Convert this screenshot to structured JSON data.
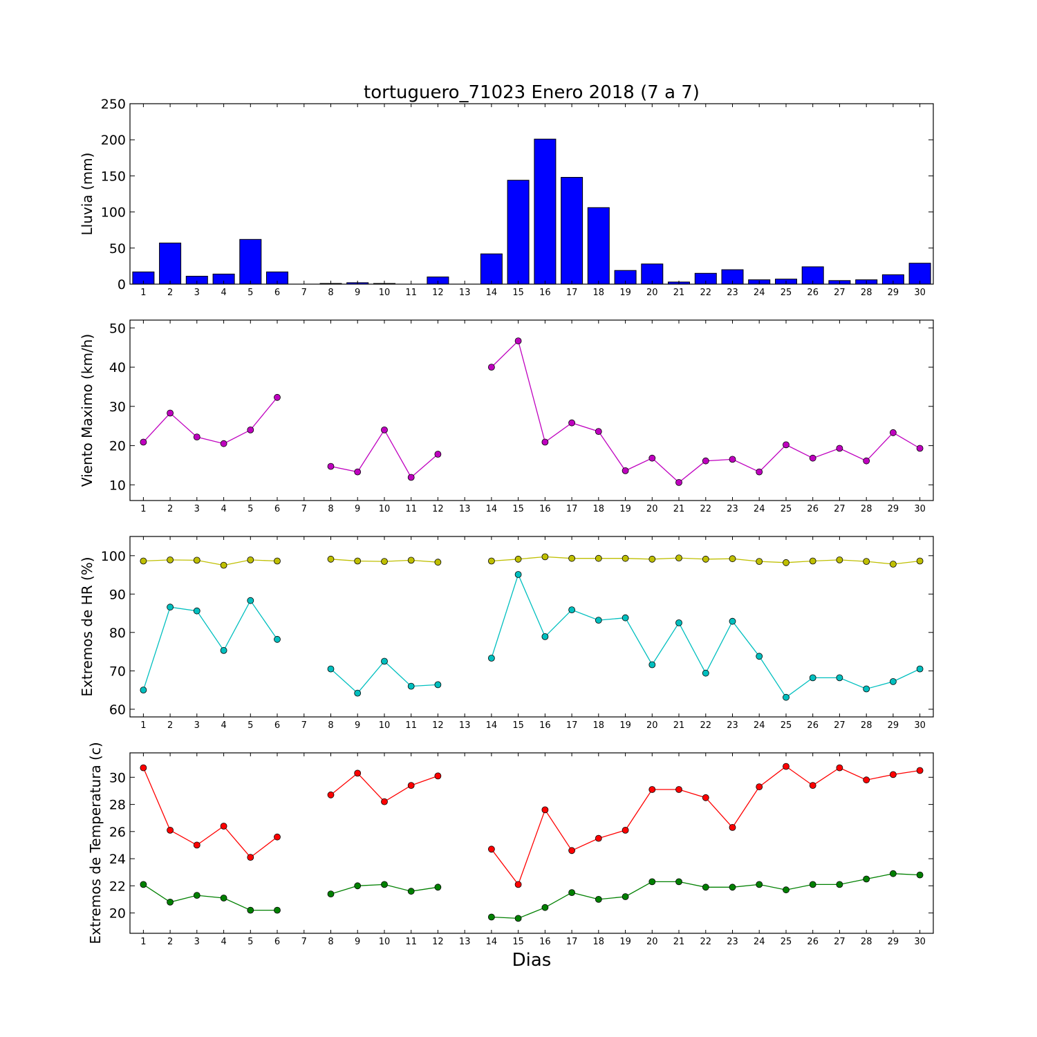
{
  "chart_data": {
    "type": "combo",
    "title": "tortuguero_71023 Enero 2018  (7 a 7)",
    "xlabel": "Dias",
    "days": [
      "1",
      "2",
      "3",
      "4",
      "5",
      "6",
      "7",
      "8",
      "9",
      "10",
      "11",
      "12",
      "13",
      "14",
      "15",
      "16",
      "17",
      "18",
      "19",
      "20",
      "21",
      "22",
      "23",
      "24",
      "25",
      "26",
      "27",
      "28",
      "29",
      "30"
    ],
    "panels": [
      {
        "id": "lluvia",
        "type": "bar",
        "ylabel": "Lluvia (mm)",
        "ylim": [
          0,
          250
        ],
        "yticks": [
          "0",
          "50",
          "100",
          "150",
          "200",
          "250"
        ],
        "series": [
          {
            "color": "#0000ff",
            "values": [
              17,
              57,
              11,
              14,
              62,
              17,
              0,
              1,
              2,
              1,
              0,
              10,
              0,
              42,
              144,
              201,
              148,
              106,
              19,
              28,
              3,
              15,
              20,
              6,
              7,
              24,
              5,
              6,
              13,
              29
            ]
          }
        ]
      },
      {
        "id": "viento",
        "type": "line",
        "ylabel": "Viento Maximo (km/h)",
        "ylim": [
          6,
          52
        ],
        "yticks": [
          "10",
          "20",
          "30",
          "40",
          "50"
        ],
        "series": [
          {
            "color": "#bf00bf",
            "values": [
              20.9,
              28.3,
              22.2,
              20.5,
              24.0,
              32.3,
              null,
              14.7,
              13.3,
              24.0,
              11.9,
              17.8,
              null,
              40.0,
              46.7,
              20.9,
              25.8,
              23.6,
              13.6,
              16.8,
              10.6,
              16.1,
              16.5,
              13.3,
              20.2,
              16.8,
              19.3,
              16.1,
              23.3,
              19.3
            ]
          }
        ]
      },
      {
        "id": "hr",
        "type": "line",
        "ylabel": "Extremos de HR (%)",
        "ylim": [
          58,
          105
        ],
        "yticks": [
          "60",
          "70",
          "80",
          "90",
          "100"
        ],
        "series": [
          {
            "color": "#bfbf00",
            "values": [
              98.6,
              98.9,
              98.8,
              97.5,
              98.9,
              98.6,
              null,
              99.1,
              98.6,
              98.5,
              98.8,
              98.3,
              null,
              98.6,
              99.1,
              99.7,
              99.3,
              99.3,
              99.3,
              99.1,
              99.4,
              99.1,
              99.2,
              98.5,
              98.2,
              98.6,
              98.9,
              98.5,
              97.8,
              98.6
            ]
          },
          {
            "color": "#00bfbf",
            "values": [
              65.0,
              86.6,
              85.6,
              75.3,
              88.3,
              78.2,
              null,
              70.5,
              64.2,
              72.5,
              66.0,
              66.4,
              null,
              73.3,
              95.1,
              78.9,
              85.9,
              83.2,
              83.8,
              71.6,
              82.5,
              69.4,
              82.9,
              73.8,
              63.1,
              68.2,
              68.2,
              65.3,
              67.2,
              70.5
            ]
          }
        ]
      },
      {
        "id": "temperatura",
        "type": "line",
        "ylabel": "Extremos de Temperatura (c)",
        "ylim": [
          18.5,
          31.8
        ],
        "yticks": [
          "20",
          "22",
          "24",
          "26",
          "28",
          "30"
        ],
        "series": [
          {
            "color": "#ff0000",
            "values": [
              30.7,
              26.1,
              25.0,
              26.4,
              24.1,
              25.6,
              null,
              28.7,
              30.3,
              28.2,
              29.4,
              30.1,
              null,
              24.7,
              22.1,
              27.6,
              24.6,
              25.5,
              26.1,
              29.1,
              29.1,
              28.5,
              26.3,
              29.3,
              30.8,
              29.4,
              30.7,
              29.8,
              30.2,
              30.5
            ]
          },
          {
            "color": "#008000",
            "values": [
              22.1,
              20.8,
              21.3,
              21.1,
              20.2,
              20.2,
              null,
              21.4,
              22.0,
              22.1,
              21.6,
              21.9,
              null,
              19.7,
              19.6,
              20.4,
              21.5,
              21.0,
              21.2,
              22.3,
              22.3,
              21.9,
              21.9,
              22.1,
              21.7,
              22.1,
              22.1,
              22.5,
              22.9,
              22.8
            ]
          }
        ]
      }
    ]
  }
}
